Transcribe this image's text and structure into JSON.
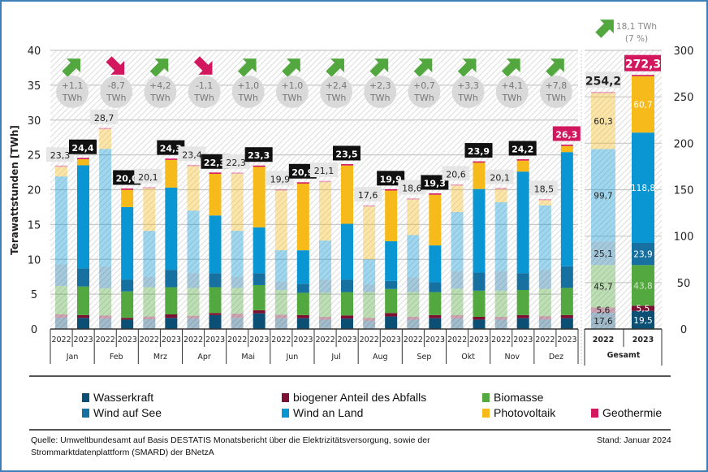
{
  "chart_data": {
    "type": "bar",
    "stacked": true,
    "ylabel": "Terawattstunden [TWh]",
    "ylim": [
      0,
      40
    ],
    "yticks": [
      "0",
      "5",
      "10",
      "15",
      "20",
      "25",
      "30",
      "35",
      "40"
    ],
    "y2lim": [
      0,
      300
    ],
    "y2ticks": [
      "0",
      "50",
      "100",
      "150",
      "200",
      "250",
      "300"
    ],
    "grid": true,
    "legend_position": "bottom",
    "categories": [
      "Jan",
      "Feb",
      "Mrz",
      "Apr",
      "Mai",
      "Jun",
      "Jul",
      "Aug",
      "Sep",
      "Okt",
      "Nov",
      "Dez"
    ],
    "years": [
      "2022",
      "2023"
    ],
    "series": [
      {
        "name": "Wasserkraft",
        "color": "#0b4f75",
        "values_2022": [
          1.6,
          1.5,
          1.4,
          1.5,
          1.6,
          1.55,
          1.35,
          1.2,
          1.35,
          1.5,
          1.35,
          1.4
        ],
        "values_2023": [
          1.6,
          1.35,
          1.6,
          2.0,
          2.25,
          1.55,
          1.5,
          1.8,
          1.55,
          1.35,
          1.55,
          1.55
        ]
      },
      {
        "name": "biogener Anteil des Abfalls",
        "color": "#7b1033",
        "values_2022": [
          0.5,
          0.45,
          0.4,
          0.4,
          0.6,
          0.5,
          0.4,
          0.4,
          0.4,
          0.5,
          0.4,
          0.45
        ],
        "values_2023": [
          0.4,
          0.25,
          0.5,
          0.3,
          0.45,
          0.45,
          0.45,
          0.5,
          0.45,
          0.4,
          0.45,
          0.45
        ]
      },
      {
        "name": "Biomasse",
        "color": "#53a93f",
        "values_2022": [
          4.1,
          3.9,
          4.2,
          4.0,
          3.7,
          3.55,
          3.45,
          3.7,
          3.55,
          3.8,
          3.75,
          3.9
        ],
        "values_2023": [
          4.1,
          3.8,
          3.9,
          3.7,
          3.6,
          3.2,
          3.35,
          3.45,
          3.3,
          3.75,
          3.6,
          3.9
        ]
      },
      {
        "name": "Wind auf See",
        "color": "#1670a0",
        "values_2022": [
          3.1,
          3.1,
          1.5,
          2.1,
          1.6,
          1.2,
          1.9,
          1.1,
          2.1,
          2.5,
          2.8,
          2.75
        ],
        "values_2023": [
          2.6,
          1.7,
          2.5,
          2.0,
          1.7,
          1.3,
          1.8,
          1.15,
          1.4,
          2.6,
          2.4,
          3.1
        ]
      },
      {
        "name": "Wind an Land",
        "color": "#0996d3",
        "values_2022": [
          12.6,
          16.9,
          6.6,
          9.0,
          6.6,
          4.5,
          5.6,
          3.6,
          6.1,
          8.5,
          9.9,
          9.25
        ],
        "values_2023": [
          14.8,
          10.4,
          11.8,
          8.3,
          6.6,
          4.8,
          8.0,
          5.7,
          5.3,
          12.0,
          14.6,
          16.4
        ]
      },
      {
        "name": "Photovoltaik",
        "color": "#f6bb1b",
        "values_2022": [
          1.38,
          2.83,
          6.08,
          6.38,
          8.18,
          8.58,
          8.38,
          7.58,
          5.08,
          3.78,
          1.88,
          0.73
        ],
        "values_2023": [
          0.88,
          2.48,
          3.98,
          5.98,
          8.68,
          9.58,
          8.38,
          7.28,
          7.28,
          3.78,
          1.58,
          0.88
        ]
      },
      {
        "name": "Geothermie",
        "color": "#d3175f",
        "values_2022": [
          0.02,
          0.02,
          0.02,
          0.02,
          0.02,
          0.02,
          0.02,
          0.02,
          0.02,
          0.02,
          0.02,
          0.02
        ],
        "values_2023": [
          0.02,
          0.02,
          0.02,
          0.02,
          0.02,
          0.02,
          0.02,
          0.02,
          0.02,
          0.02,
          0.02,
          0.02
        ]
      }
    ],
    "month_totals_2022": [
      "23,3",
      "28,7",
      "20,1",
      "23,4",
      "22,3",
      "19,9",
      "21,1",
      "17,6",
      "18,6",
      "20,6",
      "20,1",
      "18,5"
    ],
    "month_totals_2023": [
      "24,4",
      "20,0",
      "24,3",
      "22,3",
      "23,3",
      "20,9",
      "23,5",
      "19,9",
      "19,3",
      "23,9",
      "24,2",
      "26,3"
    ],
    "highlight_month_2023": "Dez",
    "changes": [
      {
        "value": "+1,1",
        "unit": "TWh",
        "direction": "up"
      },
      {
        "value": "-8,7",
        "unit": "TWh",
        "direction": "down"
      },
      {
        "value": "+4,2",
        "unit": "TWh",
        "direction": "up"
      },
      {
        "value": "-1,1",
        "unit": "TWh",
        "direction": "down"
      },
      {
        "value": "+1,0",
        "unit": "TWh",
        "direction": "up"
      },
      {
        "value": "+1,0",
        "unit": "TWh",
        "direction": "up"
      },
      {
        "value": "+2,4",
        "unit": "TWh",
        "direction": "up"
      },
      {
        "value": "+2,3",
        "unit": "TWh",
        "direction": "up"
      },
      {
        "value": "+0,7",
        "unit": "TWh",
        "direction": "up"
      },
      {
        "value": "+3,3",
        "unit": "TWh",
        "direction": "up"
      },
      {
        "value": "+4,1",
        "unit": "TWh",
        "direction": "up"
      },
      {
        "value": "+7,8",
        "unit": "TWh",
        "direction": "up"
      }
    ],
    "total": {
      "label": "Gesamt",
      "values_2022": [
        17.6,
        5.6,
        45.7,
        25.1,
        99.7,
        60.3,
        0.2
      ],
      "values_2023": [
        19.5,
        5.5,
        43.8,
        23.9,
        118.8,
        60.7,
        0.1
      ],
      "segment_labels_2022": [
        "17,6",
        "5,6",
        "45,7",
        "25,1",
        "99,7",
        "60,3",
        ""
      ],
      "segment_labels_2023": [
        "19,5",
        "5,5",
        "43,8",
        "23,9",
        "118,8",
        "60,7",
        ""
      ],
      "sum_2022": "254,2",
      "sum_2023": "272,3",
      "change_value": "18,1 TWh",
      "change_percent": "(7 %)"
    },
    "colors": {
      "up": "#52a83f",
      "down": "#d3175f",
      "label_2023_bg": "#111111",
      "label_2022_bg": "#e6e6e6",
      "circle": "#d9d9d9"
    }
  },
  "legend": [
    "Wasserkraft",
    "biogener Anteil des Abfalls",
    "Biomasse",
    "Wind auf See",
    "Wind an Land",
    "Photovoltaik",
    "Geothermie"
  ],
  "footer": {
    "source_line1": "Quelle: Umweltbundesamt auf Basis DESTATIS Monatsbericht über die Elektrizitätsversorgung, sowie der",
    "source_line2": "Strommarktdatenplattform (SMARD) der BNetzA",
    "date": "Stand: Januar 2024"
  }
}
